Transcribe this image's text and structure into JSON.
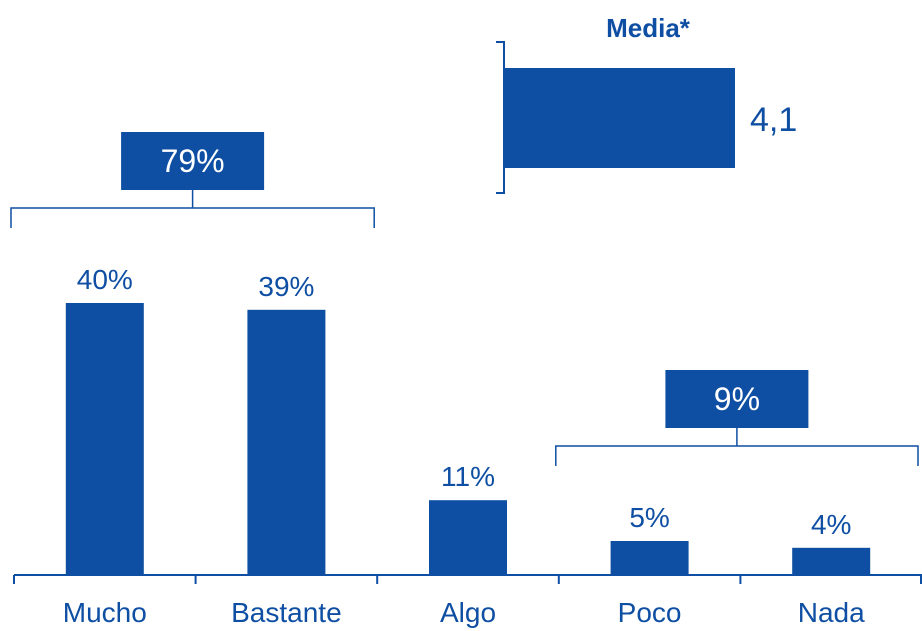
{
  "colors": {
    "bar": "#0f4fa3",
    "text": "#0f4fa3",
    "line": "#0f4fa3",
    "label_box_text": "#ffffff"
  },
  "chart_data": {
    "type": "bar",
    "categories": [
      "Mucho",
      "Bastante",
      "Algo",
      "Poco",
      "Nada"
    ],
    "values": [
      40,
      39,
      11,
      5,
      4
    ],
    "value_labels": [
      "40%",
      "39%",
      "11%",
      "5%",
      "4%"
    ],
    "ylim": [
      0,
      40
    ],
    "grid": false,
    "legend": "none",
    "groups": [
      {
        "label": "79%",
        "from": 0,
        "to": 1
      },
      {
        "label": "9%",
        "from": 3,
        "to": 4
      }
    ],
    "summary": {
      "title": "Media*",
      "value_label": "4,1",
      "value": 4.1
    }
  }
}
